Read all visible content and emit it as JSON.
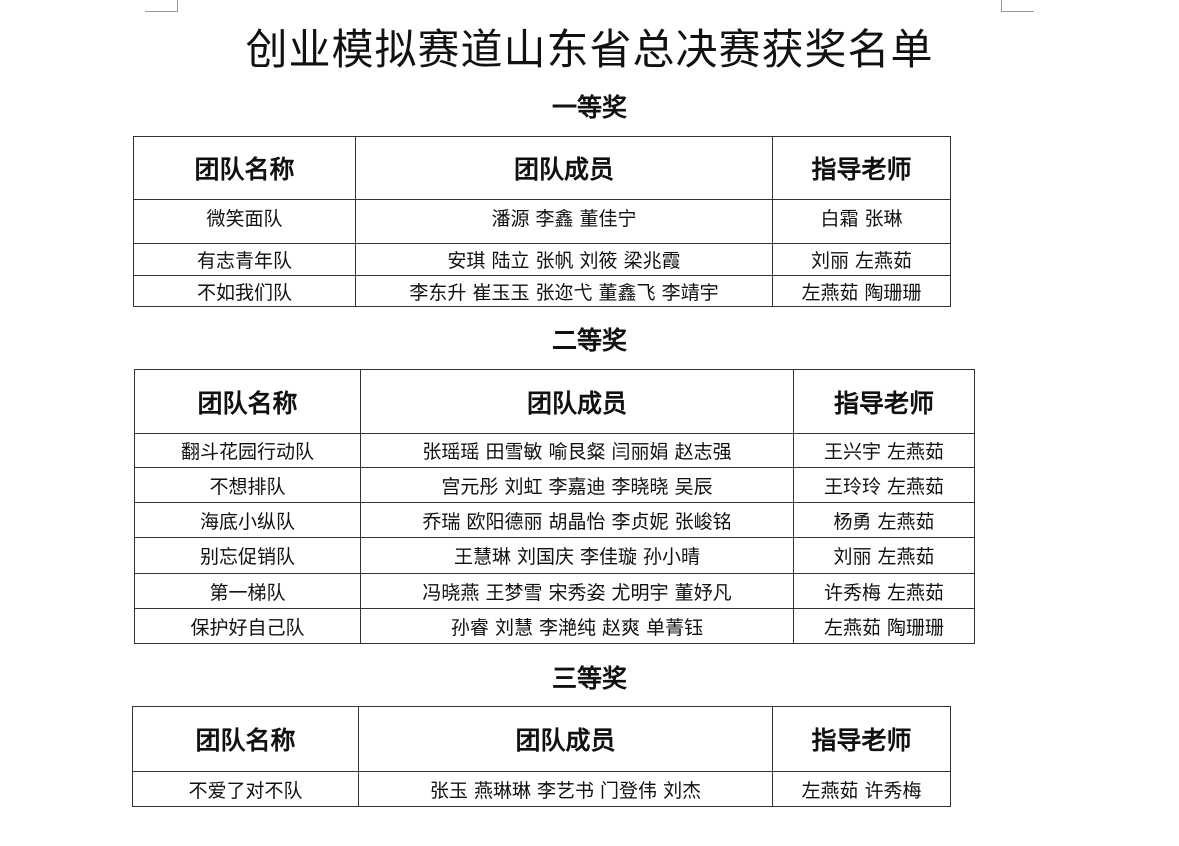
{
  "title": "创业模拟赛道山东省总决赛获奖名单",
  "headers": [
    "团队名称",
    "团队成员",
    "指导老师"
  ],
  "sections": [
    {
      "label": "一等奖",
      "rows": [
        [
          "微笑面队",
          "潘源  李鑫  董佳宁",
          "白霜  张琳"
        ],
        [
          "有志青年队",
          "安琪  陆立  张帆  刘筱  梁兆霞",
          "刘丽  左燕茹"
        ],
        [
          "不如我们队",
          "李东升  崔玉玉  张迩弋  董鑫飞  李靖宇",
          "左燕茹  陶珊珊"
        ]
      ]
    },
    {
      "label": "二等奖",
      "rows": [
        [
          "翻斗花园行动队",
          "张瑶瑶  田雪敏  喻艮粲  闫丽娟  赵志强",
          "王兴宇  左燕茹"
        ],
        [
          "不想排队",
          "宫元彤  刘虹  李嘉迪  李晓晓  吴辰",
          "王玲玲  左燕茹"
        ],
        [
          "海底小纵队",
          "乔瑞  欧阳德丽  胡晶怡  李贞妮  张峻铭",
          "杨勇  左燕茹"
        ],
        [
          "别忘促销队",
          "王慧琳  刘国庆  李佳璇  孙小晴",
          "刘丽  左燕茹"
        ],
        [
          "第一梯队",
          "冯晓燕  王梦雪  宋秀姿  尤明宇  董妤凡",
          "许秀梅  左燕茹"
        ],
        [
          "保护好自己队",
          "孙睿  刘慧  李滟纯  赵爽  单菁钰",
          "左燕茹  陶珊珊"
        ]
      ]
    },
    {
      "label": "三等奖",
      "rows": [
        [
          "不爱了对不队",
          "张玉  燕琳琳  李艺书  门登伟  刘杰",
          "左燕茹  许秀梅"
        ]
      ]
    }
  ]
}
